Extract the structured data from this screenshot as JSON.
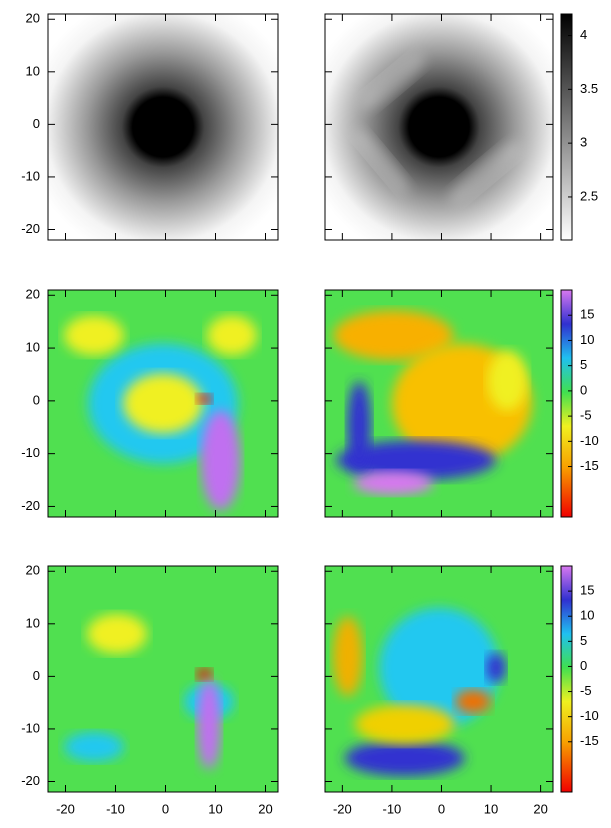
{
  "chart_data": [
    {
      "type": "heatmap",
      "colormap": "gray",
      "xlim": [
        -23.5,
        22.5
      ],
      "ylim": [
        -22,
        21
      ],
      "xticks": [
        -20,
        -10,
        0,
        10,
        20
      ],
      "yticks": [
        -20,
        -10,
        0,
        10,
        20
      ]
    },
    {
      "type": "heatmap",
      "colormap": "gray",
      "xlim": [
        -23.5,
        22.5
      ],
      "ylim": [
        -22,
        21
      ],
      "xticks": [
        -20,
        -10,
        0,
        10,
        20
      ],
      "yticks": [
        -20,
        -10,
        0,
        10,
        20
      ],
      "zlim": [
        2.1,
        4.2
      ],
      "zticks": [
        2.5,
        3,
        3.5,
        4
      ]
    },
    {
      "type": "heatmap",
      "colormap": "rainbow",
      "xlim": [
        -23.5,
        22.5
      ],
      "ylim": [
        -22,
        21
      ],
      "xticks": [
        -20,
        -10,
        0,
        10,
        20
      ],
      "yticks": [
        -20,
        -10,
        0,
        10,
        20
      ]
    },
    {
      "type": "heatmap",
      "colormap": "rainbow",
      "xlim": [
        -23.5,
        22.5
      ],
      "ylim": [
        -22,
        21
      ],
      "xticks": [
        -20,
        -10,
        0,
        10,
        20
      ],
      "yticks": [
        -20,
        -10,
        0,
        10,
        20
      ],
      "zlim": [
        -25,
        20
      ],
      "zticks": [
        -15,
        -10,
        -5,
        0,
        5,
        10,
        15
      ]
    },
    {
      "type": "heatmap",
      "colormap": "rainbow",
      "xlim": [
        -23.5,
        22.5
      ],
      "ylim": [
        -22,
        21
      ],
      "xticks": [
        -20,
        -10,
        0,
        10,
        20
      ],
      "yticks": [
        -20,
        -10,
        0,
        10,
        20
      ]
    },
    {
      "type": "heatmap",
      "colormap": "rainbow",
      "xlim": [
        -23.5,
        22.5
      ],
      "ylim": [
        -22,
        21
      ],
      "xticks": [
        -20,
        -10,
        0,
        10,
        20
      ],
      "yticks": [
        -20,
        -10,
        0,
        10,
        20
      ],
      "zlim": [
        -25,
        20
      ],
      "zticks": [
        -15,
        -10,
        -5,
        0,
        5,
        10,
        15
      ]
    }
  ]
}
